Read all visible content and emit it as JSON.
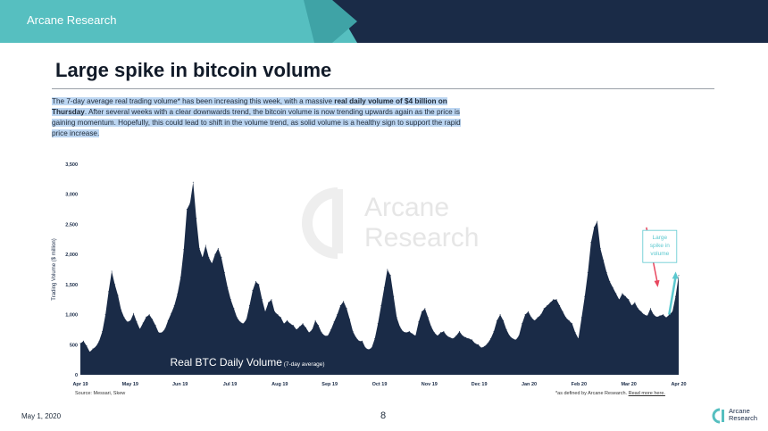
{
  "header": {
    "brand": "Arcane Research"
  },
  "page_title": "Large spike in bitcoin volume",
  "description": {
    "part1": "The 7-day average real trading volume* has been increasing this week, with a massive ",
    "bold": "real daily volume of $4 billion on Thursday",
    "part2": ". After several weeks with a clear downwards trend, the bitcoin volume is now trending upwards again as the price is gaining momentum. Hopefully, this could lead to shift in the volume trend, as solid volume is a healthy sign to support the rapid price increase."
  },
  "watermark": {
    "line1": "Arcane",
    "line2": "Research"
  },
  "chart_data": {
    "type": "area",
    "title": "Real BTC Daily Volume",
    "subtitle": "(7-day average)",
    "ylabel": "Trading Volume ($ million)",
    "ylim": [
      0,
      3500
    ],
    "yticks": [
      "0",
      "500",
      "1,000",
      "1,500",
      "2,000",
      "2,500",
      "3,000",
      "3,500"
    ],
    "xticks": [
      "Apr 19",
      "May 19",
      "Jun 19",
      "Jul 19",
      "Aug 19",
      "Sep 19",
      "Oct 19",
      "Nov 19",
      "Dec 19",
      "Jan 20",
      "Feb 20",
      "Mar 20",
      "Apr 20"
    ],
    "color": "#1a2b47",
    "annotation": {
      "text": "Large spike in volume",
      "color": "#5bc8cf"
    },
    "down_arrow_color": "#e8475f",
    "series": [
      {
        "values": [
          520,
          560,
          480,
          380,
          430,
          470,
          560,
          720,
          1000,
          1380,
          1720,
          1500,
          1320,
          1080,
          950,
          880,
          900,
          1020,
          880,
          760,
          860,
          960,
          1000,
          920,
          820,
          700,
          700,
          760,
          900,
          1020,
          1150,
          1340,
          1620,
          2080,
          2750,
          2850,
          3200,
          2600,
          2100,
          1950,
          2150,
          1950,
          1850,
          2000,
          2100,
          1950,
          1700,
          1450,
          1250,
          1100,
          950,
          880,
          850,
          920,
          1150,
          1400,
          1550,
          1500,
          1250,
          1050,
          1200,
          1250,
          1050,
          1000,
          950,
          850,
          900,
          850,
          820,
          750,
          800,
          850,
          780,
          700,
          750,
          900,
          820,
          700,
          650,
          650,
          750,
          880,
          1000,
          1150,
          1220,
          1100,
          920,
          720,
          620,
          560,
          560,
          450,
          420,
          450,
          600,
          850,
          1150,
          1450,
          1750,
          1650,
          1300,
          950,
          800,
          720,
          700,
          720,
          680,
          650,
          880,
          1050,
          1100,
          950,
          800,
          700,
          650,
          700,
          720,
          650,
          620,
          600,
          650,
          720,
          650,
          620,
          600,
          580,
          520,
          500,
          450,
          470,
          520,
          600,
          720,
          900,
          1000,
          900,
          750,
          650,
          600,
          580,
          650,
          850,
          1000,
          1050,
          950,
          900,
          950,
          1000,
          1100,
          1150,
          1200,
          1250,
          1250,
          1150,
          1050,
          950,
          900,
          850,
          700,
          600,
          950,
          1300,
          1700,
          2200,
          2450,
          2550,
          2100,
          1900,
          1700,
          1550,
          1450,
          1350,
          1250,
          1350,
          1300,
          1250,
          1150,
          1200,
          1100,
          1050,
          1000,
          980,
          1100,
          1000,
          960,
          980,
          1000,
          950,
          1000,
          1050,
          1300,
          1650
        ]
      }
    ]
  },
  "source": "Source: Messari, Skew",
  "note": {
    "text": "*as defined by Arcane Research. ",
    "link": "Read more here."
  },
  "footer": {
    "date": "May 1, 2020",
    "page": "8",
    "logo_line1": "Arcane",
    "logo_line2": "Research"
  }
}
